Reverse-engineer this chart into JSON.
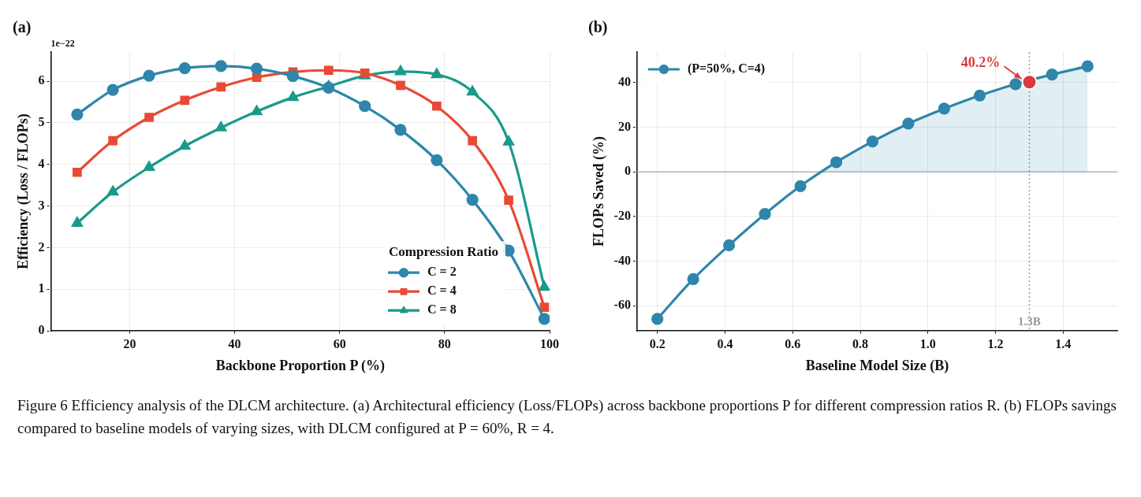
{
  "chart_data": [
    {
      "type": "line",
      "title": "(a)",
      "xlabel": "Backbone Proportion P (%)",
      "ylabel": "Efficiency (Loss / FLOPs)",
      "xlim": [
        5,
        100
      ],
      "xticks": [
        20,
        40,
        60,
        80,
        100
      ],
      "ylim": [
        0,
        6.7
      ],
      "yticks": [
        0,
        1,
        2,
        3,
        4,
        5,
        6
      ],
      "grid": true,
      "legend": "bottom right",
      "legend_title": "Compression Ratio",
      "annotations": [
        "1e−22"
      ],
      "x": [
        10,
        16.8,
        23.7,
        30.5,
        37.4,
        44.2,
        51.1,
        57.9,
        64.8,
        71.6,
        78.5,
        85.3,
        92.2,
        99
      ],
      "series": [
        {
          "name": "C = 2",
          "color": "#2e86ab",
          "marker": "circle",
          "values": [
            5.2,
            5.79,
            6.13,
            6.31,
            6.36,
            6.3,
            6.12,
            5.84,
            5.4,
            4.83,
            4.1,
            3.15,
            1.93,
            0.29
          ]
        },
        {
          "name": "C = 4",
          "color": "#e84a35",
          "marker": "square",
          "values": [
            3.81,
            4.57,
            5.13,
            5.54,
            5.86,
            6.09,
            6.22,
            6.26,
            6.19,
            5.9,
            5.4,
            4.57,
            3.14,
            0.57
          ]
        },
        {
          "name": "C = 8",
          "color": "#1a9a8a",
          "marker": "triangle",
          "values": [
            2.59,
            3.34,
            3.93,
            4.44,
            4.88,
            5.27,
            5.61,
            5.87,
            6.13,
            6.23,
            6.16,
            5.74,
            4.54,
            1.05
          ]
        }
      ]
    },
    {
      "type": "line",
      "title": "(b)",
      "xlabel": "Baseline Model Size (B)",
      "ylabel": "FLOPs Saved (%)",
      "xlim": [
        0.14,
        1.56
      ],
      "xticks": [
        0.2,
        0.4,
        0.6,
        0.8,
        {
          "value": 1,
          "label": "1.0"
        },
        1.2,
        1.4
      ],
      "ylim": [
        -71.3,
        53.7
      ],
      "yticks": [
        -60,
        -40,
        -20,
        0,
        20,
        40
      ],
      "grid": true,
      "legend": "top left",
      "marker": "circle",
      "x": [
        0.2,
        0.306,
        0.412,
        0.518,
        0.623,
        0.729,
        0.836,
        0.942,
        1.048,
        1.153,
        1.259,
        1.367,
        1.472
      ],
      "series": [
        {
          "type": "area",
          "name": "(P=50%, C=4)",
          "color": "#2e86ab",
          "values": [
            -65.9,
            -48.1,
            -32.9,
            -18.9,
            -6.4,
            4.3,
            13.6,
            21.6,
            28.3,
            34.2,
            39.3,
            43.6,
            47.3
          ]
        },
        {
          "type": "scatter",
          "color": "#dc3a3e",
          "x": [
            1.3
          ],
          "values": [
            40.2
          ]
        }
      ],
      "ref_lines": [
        {
          "axis": "y",
          "value": 0,
          "color": "#aab4bc"
        },
        {
          "axis": "x",
          "value": 1.3,
          "label": "1.3B",
          "color": "#999999",
          "line_style": "dotted"
        }
      ],
      "annotations": [
        {
          "text": "40.2%",
          "x": 1.3,
          "y": 40.2
        },
        "Figure 6 Efficiency analysis of the DLCM architecture. (a) Architectural efficiency (Loss/FLOPs) across backbone proportions P for different compression ratios R. (b) FLOPs savings compared to baseline models of varying sizes, with DLCM configured at P = 60%, R = 4."
      ]
    }
  ]
}
